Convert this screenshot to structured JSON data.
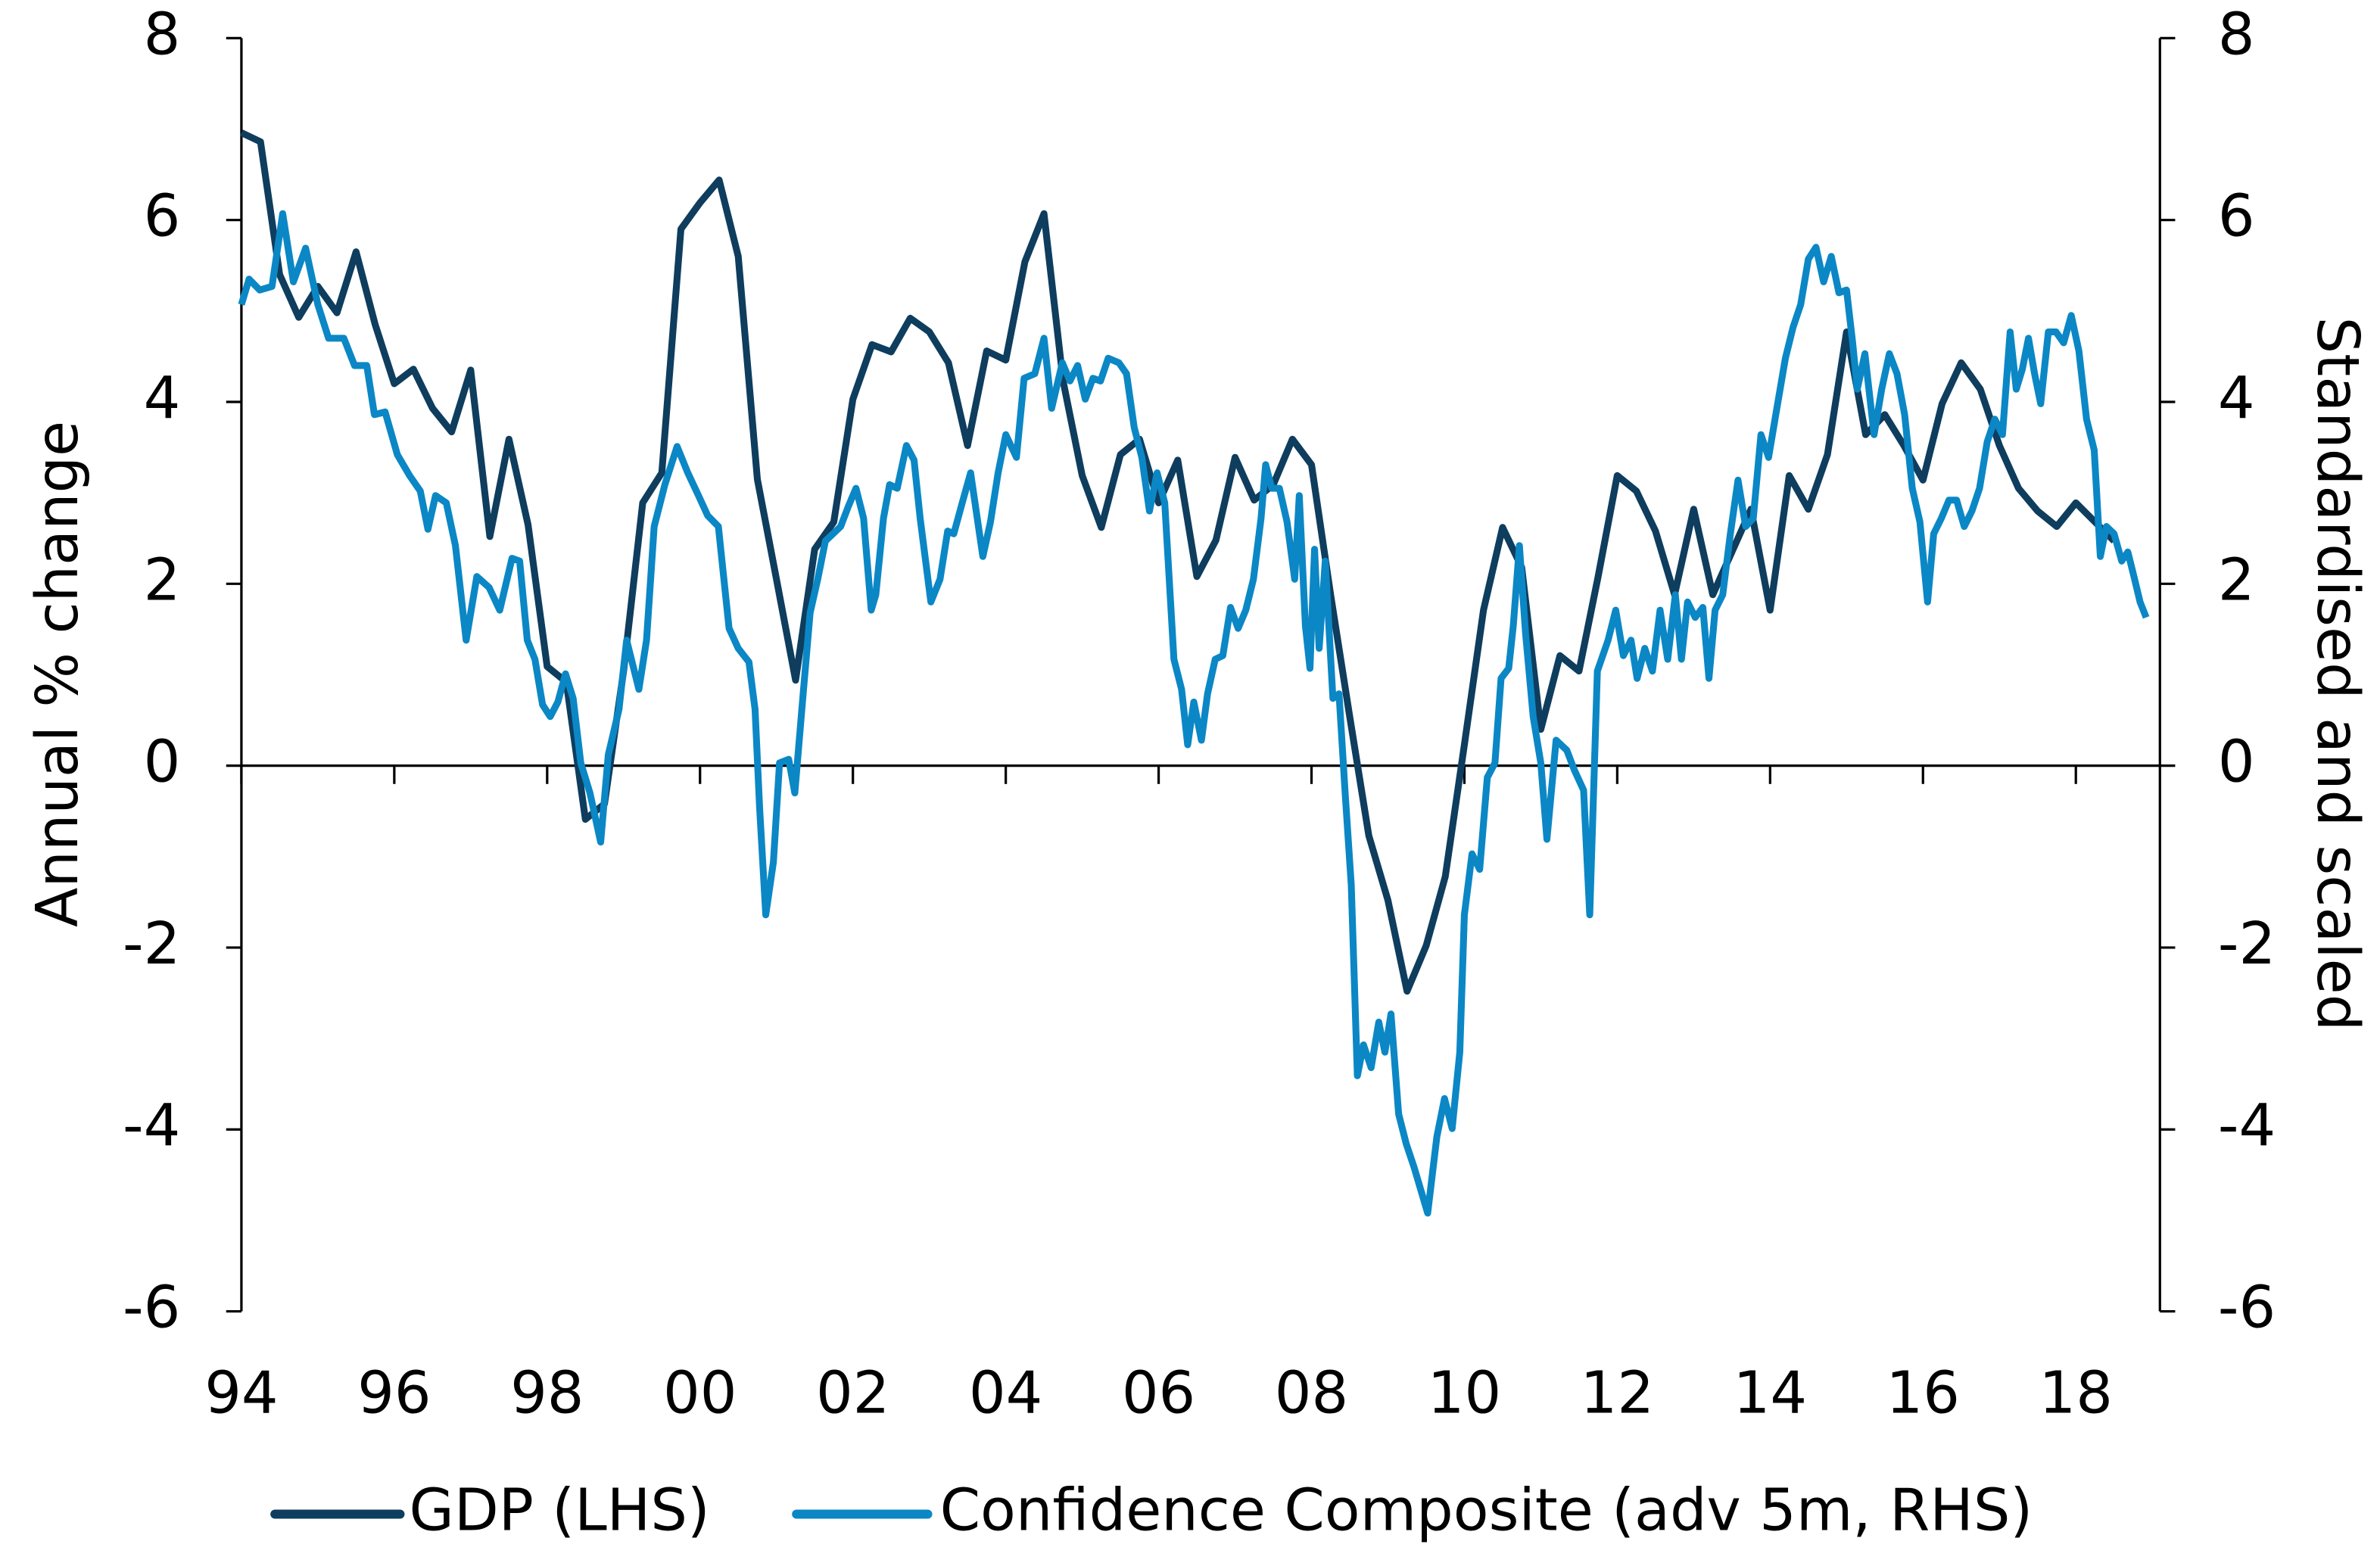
{
  "chart_data": {
    "type": "line",
    "xlim": [
      1994,
      2019.1
    ],
    "xticks": [
      {
        "value": 1994,
        "label": "94"
      },
      {
        "value": 1996,
        "label": "96"
      },
      {
        "value": 1998,
        "label": "98"
      },
      {
        "value": 2000,
        "label": "00"
      },
      {
        "value": 2002,
        "label": "02"
      },
      {
        "value": 2004,
        "label": "04"
      },
      {
        "value": 2006,
        "label": "06"
      },
      {
        "value": 2008,
        "label": "08"
      },
      {
        "value": 2010,
        "label": "10"
      },
      {
        "value": 2012,
        "label": "12"
      },
      {
        "value": 2014,
        "label": "14"
      },
      {
        "value": 2016,
        "label": "16"
      },
      {
        "value": 2018,
        "label": "18"
      }
    ],
    "ylim": [
      -6,
      8
    ],
    "yticks": [
      -6,
      -4,
      -2,
      0,
      2,
      4,
      6,
      8
    ],
    "y2lim": [
      -6,
      8
    ],
    "y2ticks": [
      -6,
      -4,
      -2,
      0,
      2,
      4,
      6,
      8
    ],
    "ylabel": "Annual % change",
    "y2label": "Standardised and scaled",
    "legend": "bottom",
    "series": [
      {
        "name": "GDP (LHS)",
        "color": "#0e3d5e",
        "axis": "y",
        "x": [
          1994,
          1994.25,
          1994.5,
          1994.75,
          1995,
          1995.25,
          1995.5,
          1995.75,
          1996,
          1996.25,
          1996.5,
          1996.75,
          1997,
          1997.25,
          1997.5,
          1997.75,
          1998,
          1998.25,
          1998.5,
          1998.75,
          1999,
          1999.25,
          1999.5,
          1999.75,
          2000,
          2000.25,
          2000.5,
          2000.75,
          2001,
          2001.25,
          2001.5,
          2001.75,
          2002,
          2002.25,
          2002.5,
          2002.75,
          2003,
          2003.25,
          2003.5,
          2003.75,
          2004,
          2004.25,
          2004.5,
          2004.75,
          2005,
          2005.25,
          2005.5,
          2005.75,
          2006,
          2006.25,
          2006.5,
          2006.75,
          2007,
          2007.25,
          2007.5,
          2007.75,
          2008,
          2008.25,
          2008.5,
          2008.75,
          2009,
          2009.25,
          2009.5,
          2009.75,
          2010,
          2010.25,
          2010.5,
          2010.75,
          2011,
          2011.25,
          2011.5,
          2011.75,
          2012,
          2012.25,
          2012.5,
          2012.75,
          2013,
          2013.25,
          2013.5,
          2013.75,
          2014,
          2014.25,
          2014.5,
          2014.75,
          2015,
          2015.25,
          2015.5,
          2015.75,
          2016,
          2016.25,
          2016.5,
          2016.75,
          2017,
          2017.25,
          2017.5,
          2017.75,
          2018,
          2018.25,
          2018.5
        ],
        "values": [
          6.96,
          6.86,
          5.4,
          4.93,
          5.27,
          4.98,
          5.65,
          4.85,
          4.2,
          4.36,
          3.93,
          3.67,
          4.35,
          2.52,
          3.59,
          2.65,
          1.09,
          0.92,
          -0.59,
          -0.42,
          1.04,
          2.89,
          3.22,
          5.9,
          6.19,
          6.44,
          5.6,
          3.15,
          2.05,
          0.94,
          2.38,
          2.68,
          4.03,
          4.63,
          4.55,
          4.92,
          4.77,
          4.43,
          3.52,
          4.56,
          4.46,
          5.54,
          6.07,
          4.23,
          3.19,
          2.62,
          3.42,
          3.59,
          2.89,
          3.36,
          2.08,
          2.48,
          3.39,
          2.92,
          3.09,
          3.59,
          3.31,
          1.88,
          0.54,
          -0.77,
          -1.48,
          -2.48,
          -1.98,
          -1.22,
          0.23,
          1.71,
          2.62,
          2.18,
          0.4,
          1.21,
          1.04,
          2.08,
          3.19,
          3.02,
          2.58,
          1.88,
          2.82,
          1.88,
          2.35,
          2.82,
          1.71,
          3.19,
          2.82,
          3.42,
          4.77,
          3.64,
          3.86,
          3.52,
          3.14,
          3.98,
          4.43,
          4.14,
          3.52,
          3.05,
          2.8,
          2.63,
          2.89,
          2.68,
          2.47
        ]
      },
      {
        "name": "Confidence Composite (adv 5m, RHS)",
        "color": "#0b87c5",
        "axis": "y2",
        "x": [
          1994,
          1994.1,
          1994.24,
          1994.4,
          1994.54,
          1994.68,
          1994.84,
          1995,
          1995.14,
          1995.34,
          1995.48,
          1995.64,
          1995.74,
          1995.88,
          1996.04,
          1996.2,
          1996.34,
          1996.44,
          1996.54,
          1996.68,
          1996.8,
          1996.94,
          1997.08,
          1997.24,
          1997.38,
          1997.54,
          1997.64,
          1997.74,
          1997.84,
          1997.94,
          1998.04,
          1998.14,
          1998.24,
          1998.34,
          1998.44,
          1998.56,
          1998.7,
          1998.8,
          1998.94,
          1999.04,
          1999.2,
          1999.3,
          1999.4,
          1999.54,
          1999.7,
          1999.84,
          1999.98,
          2000.1,
          2000.24,
          2000.38,
          2000.5,
          2000.64,
          2000.72,
          2000.78,
          2000.86,
          2000.96,
          2001.04,
          2001.16,
          2001.24,
          2001.34,
          2001.44,
          2001.54,
          2001.64,
          2001.74,
          2001.84,
          2001.94,
          2002.04,
          2002.14,
          2002.24,
          2002.3,
          2002.4,
          2002.48,
          2002.58,
          2002.7,
          2002.8,
          2002.88,
          2003.02,
          2003.14,
          2003.24,
          2003.32,
          2003.44,
          2003.54,
          2003.7,
          2003.8,
          2003.9,
          2004,
          2004.14,
          2004.24,
          2004.38,
          2004.5,
          2004.6,
          2004.74,
          2004.84,
          2004.94,
          2005.04,
          2005.14,
          2005.24,
          2005.34,
          2005.48,
          2005.58,
          2005.68,
          2005.78,
          2005.88,
          2005.98,
          2006.08,
          2006.2,
          2006.3,
          2006.38,
          2006.46,
          2006.56,
          2006.64,
          2006.74,
          2006.84,
          2006.94,
          2007.04,
          2007.14,
          2007.24,
          2007.34,
          2007.4,
          2007.48,
          2007.58,
          2007.68,
          2007.78,
          2007.84,
          2007.92,
          2007.98,
          2008.04,
          2008.1,
          2008.18,
          2008.28,
          2008.36,
          2008.44,
          2008.52,
          2008.6,
          2008.68,
          2008.78,
          2008.88,
          2008.96,
          2009.04,
          2009.14,
          2009.24,
          2009.34,
          2009.52,
          2009.64,
          2009.74,
          2009.84,
          2009.94,
          2010,
          2010.1,
          2010.2,
          2010.3,
          2010.4,
          2010.48,
          2010.58,
          2010.64,
          2010.72,
          2010.8,
          2010.9,
          2011,
          2011.08,
          2011.2,
          2011.34,
          2011.44,
          2011.56,
          2011.64,
          2011.74,
          2011.88,
          2011.98,
          2012.08,
          2012.18,
          2012.26,
          2012.36,
          2012.46,
          2012.56,
          2012.66,
          2012.76,
          2012.84,
          2012.92,
          2013.02,
          2013.12,
          2013.2,
          2013.28,
          2013.38,
          2013.48,
          2013.58,
          2013.68,
          2013.78,
          2013.88,
          2013.98,
          2014.08,
          2014.2,
          2014.3,
          2014.4,
          2014.5,
          2014.6,
          2014.7,
          2014.8,
          2014.9,
          2015,
          2015.08,
          2015.14,
          2015.24,
          2015.36,
          2015.46,
          2015.56,
          2015.66,
          2015.76,
          2015.86,
          2015.96,
          2016.06,
          2016.14,
          2016.24,
          2016.34,
          2016.44,
          2016.54,
          2016.64,
          2016.74,
          2016.84,
          2016.94,
          2017.04,
          2017.14,
          2017.22,
          2017.3,
          2017.38,
          2017.46,
          2017.54,
          2017.64,
          2017.74,
          2017.84,
          2017.94,
          2018.04,
          2018.14,
          2018.24,
          2018.32,
          2018.4,
          2018.5,
          2018.6,
          2018.68,
          2018.76,
          2018.84,
          2018.92
        ],
        "values": [
          5.07,
          5.35,
          5.23,
          5.27,
          6.07,
          5.32,
          5.69,
          5.07,
          4.7,
          4.7,
          4.4,
          4.4,
          3.86,
          3.89,
          3.42,
          3.19,
          3.02,
          2.6,
          2.97,
          2.89,
          2.42,
          1.38,
          2.08,
          1.96,
          1.71,
          2.28,
          2.25,
          1.38,
          1.17,
          0.67,
          0.54,
          0.7,
          1.01,
          0.74,
          0.03,
          -0.3,
          -0.84,
          0.12,
          0.62,
          1.38,
          0.84,
          1.38,
          2.63,
          3.09,
          3.51,
          3.22,
          2.97,
          2.75,
          2.63,
          1.51,
          1.29,
          1.14,
          0.62,
          -0.47,
          -1.64,
          -1.06,
          0.03,
          0.07,
          -0.3,
          0.7,
          1.68,
          2.05,
          2.47,
          2.55,
          2.63,
          2.85,
          3.05,
          2.72,
          1.71,
          1.88,
          2.72,
          3.09,
          3.05,
          3.52,
          3.36,
          2.72,
          1.8,
          2.05,
          2.58,
          2.55,
          2.92,
          3.22,
          2.3,
          2.68,
          3.22,
          3.64,
          3.39,
          4.26,
          4.31,
          4.7,
          3.93,
          4.43,
          4.23,
          4.4,
          4.03,
          4.26,
          4.23,
          4.48,
          4.43,
          4.31,
          3.72,
          3.39,
          2.8,
          3.22,
          2.89,
          1.17,
          0.84,
          0.23,
          0.7,
          0.28,
          0.79,
          1.17,
          1.21,
          1.74,
          1.51,
          1.71,
          2.05,
          2.72,
          3.31,
          3.05,
          3.05,
          2.68,
          2.05,
          2.97,
          1.54,
          1.07,
          2.38,
          1.29,
          2.25,
          0.74,
          0.79,
          -0.3,
          -1.31,
          -3.41,
          -3.07,
          -3.32,
          -2.82,
          -3.15,
          -2.73,
          -3.83,
          -4.16,
          -4.41,
          -4.92,
          -4.08,
          -3.66,
          -3.99,
          -3.15,
          -1.64,
          -0.97,
          -1.14,
          -0.13,
          0.03,
          0.96,
          1.07,
          1.54,
          2.42,
          1.46,
          0.54,
          0.03,
          -0.81,
          0.28,
          0.17,
          -0.05,
          -0.27,
          -1.64,
          1.04,
          1.38,
          1.71,
          1.21,
          1.38,
          0.96,
          1.29,
          1.04,
          1.71,
          1.17,
          1.88,
          1.17,
          1.8,
          1.63,
          1.74,
          0.96,
          1.71,
          1.88,
          2.55,
          3.14,
          2.63,
          2.72,
          3.64,
          3.39,
          3.89,
          4.48,
          4.82,
          5.07,
          5.57,
          5.7,
          5.32,
          5.6,
          5.2,
          5.23,
          4.65,
          4.14,
          4.53,
          3.64,
          4.14,
          4.53,
          4.31,
          3.86,
          3.05,
          2.68,
          1.8,
          2.55,
          2.72,
          2.92,
          2.92,
          2.63,
          2.8,
          3.05,
          3.56,
          3.81,
          3.64,
          4.77,
          4.14,
          4.36,
          4.7,
          4.31,
          3.98,
          4.77,
          4.77,
          4.65,
          4.95,
          4.56,
          3.81,
          3.47,
          2.3,
          2.63,
          2.55,
          2.25,
          2.35,
          2.08,
          1.8,
          1.63
        ]
      }
    ]
  }
}
